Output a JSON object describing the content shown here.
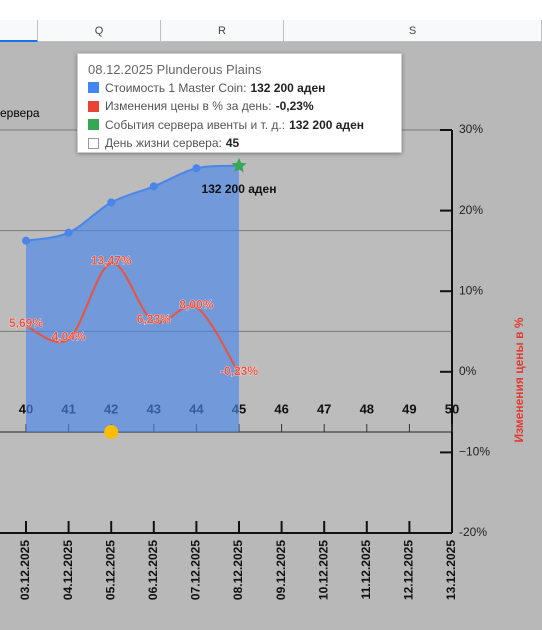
{
  "columns": [
    "Q",
    "R",
    "S"
  ],
  "left_label": "ервера",
  "tooltip": {
    "title": "08.12.2025 Plunderous Plains",
    "items": [
      {
        "label": "Стоимость 1 Master Coin:",
        "value": "132 200 аден",
        "color": "#4285f4"
      },
      {
        "label": "Изменения цены в % за день:",
        "value": "-0,23%",
        "color": "#ea4335"
      },
      {
        "label": "События сервера ивенты и т. д.:",
        "value": "132 200 аден",
        "color": "#34a853"
      },
      {
        "label": "День жизни сервера:",
        "value": "45",
        "color": "#ffffff"
      }
    ]
  },
  "chart_data": {
    "type": "line",
    "categories": [
      "03.12.2025",
      "04.12.2025",
      "05.12.2025",
      "06.12.2025",
      "07.12.2025",
      "08.12.2025",
      "09.12.2025",
      "10.12.2025",
      "11.12.2025",
      "12.12.2025",
      "13.12.2025"
    ],
    "days": [
      40,
      41,
      42,
      43,
      44,
      45,
      46,
      47,
      48,
      49,
      50
    ],
    "ylim": [
      0,
      150000
    ],
    "yticks": [
      0,
      50000,
      100000,
      150000
    ],
    "grid": true,
    "y2lim": [
      -20,
      30
    ],
    "y2ticks": [
      {
        "value": 30,
        "label": "30%"
      },
      {
        "value": 20,
        "label": "20%"
      },
      {
        "value": 10,
        "label": "10%"
      },
      {
        "value": 0,
        "label": "0%"
      },
      {
        "value": -10,
        "label": "−10%"
      },
      {
        "value": -20,
        "label": "-20%"
      }
    ],
    "y2label": "Изменения цены в %",
    "series": [
      {
        "name": "Стоимость 1 Master Coin",
        "color": "#4a86e8",
        "area": true,
        "values": [
          95000,
          99000,
          114000,
          122000,
          131000,
          132200,
          null,
          null,
          null,
          null,
          null
        ]
      },
      {
        "name": "Изменения цены в % за день",
        "color": "#e8533f",
        "axis": "y2",
        "values": [
          5.69,
          4.04,
          13.47,
          6.23,
          8.0,
          -0.23,
          null,
          null,
          null,
          null,
          null
        ],
        "value_labels": [
          "5,69%",
          "4,04%",
          "13,47%",
          "6,23%",
          "8,00%",
          "-0,23%",
          null,
          null,
          null,
          null,
          null
        ]
      },
      {
        "name": "События сервера ивенты и т. д.",
        "color": "#34a853",
        "marker": "star",
        "values": [
          null,
          null,
          null,
          null,
          null,
          132200,
          null,
          null,
          null,
          null,
          null
        ],
        "value_labels": [
          null,
          null,
          null,
          null,
          null,
          "132 200 аден",
          null,
          null,
          null,
          null,
          null
        ]
      },
      {
        "name": "highlight",
        "color": "#fbbc04",
        "marker": "circle",
        "values": [
          null,
          null,
          0,
          null,
          null,
          null,
          null,
          null,
          null,
          null,
          null
        ]
      }
    ]
  }
}
